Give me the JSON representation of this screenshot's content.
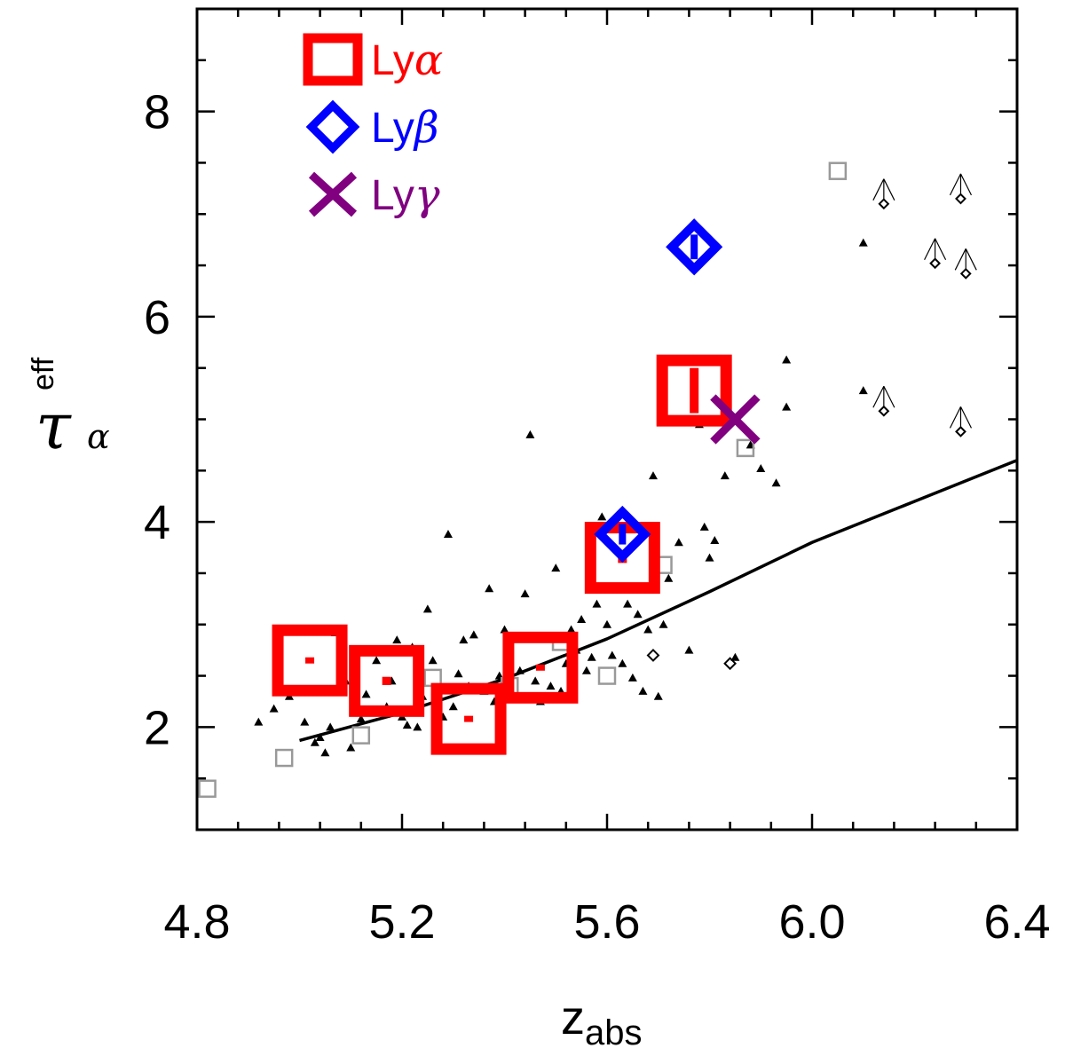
{
  "chart_data": {
    "type": "scatter",
    "xlabel": {
      "main": "z",
      "sub": "abs"
    },
    "ylabel": {
      "main": "τ",
      "sub": "α",
      "sup": "eff"
    },
    "xlim": [
      4.8,
      6.4
    ],
    "ylim": [
      1.0,
      9.0
    ],
    "xticks": [
      "4.8",
      "5.2",
      "5.6",
      "6.0",
      "6.4"
    ],
    "xtick_values": [
      4.8,
      5.2,
      5.6,
      6.0,
      6.4
    ],
    "yticks": [
      "2",
      "4",
      "6",
      "8"
    ],
    "ytick_values": [
      2,
      4,
      6,
      8
    ],
    "x_minor_step": 0.08,
    "y_minor_step": 0.5,
    "legend": {
      "placement": "top-left",
      "entries": [
        {
          "base": "Ly",
          "greek": "α",
          "marker": "square",
          "color": "#ff0000"
        },
        {
          "base": "Ly",
          "greek": "β",
          "marker": "diamond",
          "color": "#0000ff"
        },
        {
          "base": "Ly",
          "greek": "γ",
          "marker": "cross",
          "color": "#800080"
        }
      ]
    },
    "series": [
      {
        "marker": "square",
        "color": "#ff0000",
        "size": "large",
        "points": [
          {
            "x": 5.02,
            "y": 2.65,
            "err": 0.03
          },
          {
            "x": 5.17,
            "y": 2.45,
            "err": 0.04
          },
          {
            "x": 5.33,
            "y": 2.08,
            "err": 0.03
          },
          {
            "x": 5.47,
            "y": 2.58,
            "err": 0.03
          },
          {
            "x": 5.63,
            "y": 3.65,
            "err": 0.05
          },
          {
            "x": 5.77,
            "y": 5.28,
            "err": 0.22
          }
        ]
      },
      {
        "marker": "diamond",
        "color": "#0000ff",
        "size": "large",
        "points": [
          {
            "x": 5.63,
            "y": 3.88,
            "err": 0.1
          },
          {
            "x": 5.77,
            "y": 6.68,
            "err": 0.12
          }
        ]
      },
      {
        "marker": "cross",
        "color": "#800080",
        "size": "large",
        "points": [
          {
            "x": 5.85,
            "y": 5.0
          }
        ]
      },
      {
        "marker": "square-open",
        "color": "#999999",
        "size": "small",
        "points": [
          {
            "x": 4.82,
            "y": 1.4
          },
          {
            "x": 4.97,
            "y": 1.7
          },
          {
            "x": 5.12,
            "y": 1.92
          },
          {
            "x": 5.26,
            "y": 2.48
          },
          {
            "x": 5.41,
            "y": 2.4
          },
          {
            "x": 5.51,
            "y": 2.83
          },
          {
            "x": 5.6,
            "y": 2.5
          },
          {
            "x": 5.71,
            "y": 3.58
          },
          {
            "x": 5.87,
            "y": 4.72
          },
          {
            "x": 6.05,
            "y": 7.42
          }
        ]
      },
      {
        "marker": "triangle",
        "color": "#000000",
        "size": "tiny",
        "points": [
          {
            "x": 4.92,
            "y": 2.05
          },
          {
            "x": 4.95,
            "y": 2.18
          },
          {
            "x": 4.98,
            "y": 2.3
          },
          {
            "x": 5.01,
            "y": 2.05
          },
          {
            "x": 5.03,
            "y": 1.85
          },
          {
            "x": 5.04,
            "y": 1.9
          },
          {
            "x": 5.05,
            "y": 1.75
          },
          {
            "x": 5.06,
            "y": 2.0
          },
          {
            "x": 5.07,
            "y": 2.92
          },
          {
            "x": 5.09,
            "y": 2.45
          },
          {
            "x": 5.1,
            "y": 1.8
          },
          {
            "x": 5.11,
            "y": 2.2
          },
          {
            "x": 5.12,
            "y": 2.08
          },
          {
            "x": 5.13,
            "y": 2.32
          },
          {
            "x": 5.15,
            "y": 2.65
          },
          {
            "x": 5.16,
            "y": 2.15
          },
          {
            "x": 5.17,
            "y": 2.2
          },
          {
            "x": 5.18,
            "y": 2.45
          },
          {
            "x": 5.19,
            "y": 2.85
          },
          {
            "x": 5.2,
            "y": 2.1
          },
          {
            "x": 5.21,
            "y": 2.02
          },
          {
            "x": 5.22,
            "y": 2.78
          },
          {
            "x": 5.23,
            "y": 2.0
          },
          {
            "x": 5.24,
            "y": 2.3
          },
          {
            "x": 5.25,
            "y": 3.15
          },
          {
            "x": 5.26,
            "y": 2.65
          },
          {
            "x": 5.27,
            "y": 2.35
          },
          {
            "x": 5.28,
            "y": 2.1
          },
          {
            "x": 5.29,
            "y": 3.88
          },
          {
            "x": 5.3,
            "y": 2.2
          },
          {
            "x": 5.31,
            "y": 2.52
          },
          {
            "x": 5.32,
            "y": 2.85
          },
          {
            "x": 5.33,
            "y": 2.4
          },
          {
            "x": 5.34,
            "y": 2.9
          },
          {
            "x": 5.35,
            "y": 1.78
          },
          {
            "x": 5.36,
            "y": 2.35
          },
          {
            "x": 5.37,
            "y": 3.35
          },
          {
            "x": 5.38,
            "y": 2.25
          },
          {
            "x": 5.39,
            "y": 2.5
          },
          {
            "x": 5.4,
            "y": 2.95
          },
          {
            "x": 5.41,
            "y": 2.65
          },
          {
            "x": 5.42,
            "y": 2.3
          },
          {
            "x": 5.43,
            "y": 2.55
          },
          {
            "x": 5.44,
            "y": 3.3
          },
          {
            "x": 5.45,
            "y": 4.85
          },
          {
            "x": 5.46,
            "y": 2.45
          },
          {
            "x": 5.47,
            "y": 2.25
          },
          {
            "x": 5.48,
            "y": 2.3
          },
          {
            "x": 5.49,
            "y": 2.4
          },
          {
            "x": 5.5,
            "y": 3.55
          },
          {
            "x": 5.51,
            "y": 2.35
          },
          {
            "x": 5.52,
            "y": 2.62
          },
          {
            "x": 5.53,
            "y": 2.95
          },
          {
            "x": 5.54,
            "y": 2.75
          },
          {
            "x": 5.55,
            "y": 3.05
          },
          {
            "x": 5.56,
            "y": 2.55
          },
          {
            "x": 5.57,
            "y": 2.68
          },
          {
            "x": 5.58,
            "y": 3.2
          },
          {
            "x": 5.59,
            "y": 4.05
          },
          {
            "x": 5.6,
            "y": 3.0
          },
          {
            "x": 5.61,
            "y": 2.7
          },
          {
            "x": 5.62,
            "y": 3.95
          },
          {
            "x": 5.63,
            "y": 2.62
          },
          {
            "x": 5.64,
            "y": 3.2
          },
          {
            "x": 5.65,
            "y": 2.48
          },
          {
            "x": 5.66,
            "y": 3.1
          },
          {
            "x": 5.67,
            "y": 2.35
          },
          {
            "x": 5.68,
            "y": 2.95
          },
          {
            "x": 5.69,
            "y": 4.45
          },
          {
            "x": 5.7,
            "y": 2.3
          },
          {
            "x": 5.71,
            "y": 3.0
          },
          {
            "x": 5.72,
            "y": 3.45
          },
          {
            "x": 5.74,
            "y": 3.8
          },
          {
            "x": 5.76,
            "y": 2.75
          },
          {
            "x": 5.78,
            "y": 4.95
          },
          {
            "x": 5.79,
            "y": 3.95
          },
          {
            "x": 5.8,
            "y": 3.65
          },
          {
            "x": 5.81,
            "y": 3.82
          },
          {
            "x": 5.83,
            "y": 4.45
          },
          {
            "x": 5.85,
            "y": 2.68
          },
          {
            "x": 5.88,
            "y": 4.75
          },
          {
            "x": 5.9,
            "y": 4.52
          },
          {
            "x": 5.93,
            "y": 4.38
          },
          {
            "x": 5.95,
            "y": 5.12
          },
          {
            "x": 5.95,
            "y": 5.58
          },
          {
            "x": 6.1,
            "y": 6.72
          },
          {
            "x": 6.1,
            "y": 5.28
          }
        ]
      },
      {
        "marker": "diamond-small",
        "color": "#000000",
        "size": "tiny",
        "points": [
          {
            "x": 5.69,
            "y": 2.7
          },
          {
            "x": 5.84,
            "y": 2.62
          }
        ]
      },
      {
        "marker": "diamond-lower-limit",
        "color": "#000000",
        "size": "tiny",
        "points": [
          {
            "x": 6.14,
            "y": 7.1
          },
          {
            "x": 6.29,
            "y": 7.15
          },
          {
            "x": 6.24,
            "y": 6.52
          },
          {
            "x": 6.3,
            "y": 6.42
          },
          {
            "x": 6.14,
            "y": 5.08
          },
          {
            "x": 6.29,
            "y": 4.88
          }
        ]
      },
      {
        "marker": "line",
        "color": "#000000",
        "points": [
          {
            "x": 5.0,
            "y": 1.87
          },
          {
            "x": 5.2,
            "y": 2.14
          },
          {
            "x": 5.4,
            "y": 2.47
          },
          {
            "x": 5.6,
            "y": 2.86
          },
          {
            "x": 5.8,
            "y": 3.32
          },
          {
            "x": 6.0,
            "y": 3.8
          },
          {
            "x": 6.2,
            "y": 4.2
          },
          {
            "x": 6.4,
            "y": 4.6
          }
        ]
      }
    ]
  }
}
